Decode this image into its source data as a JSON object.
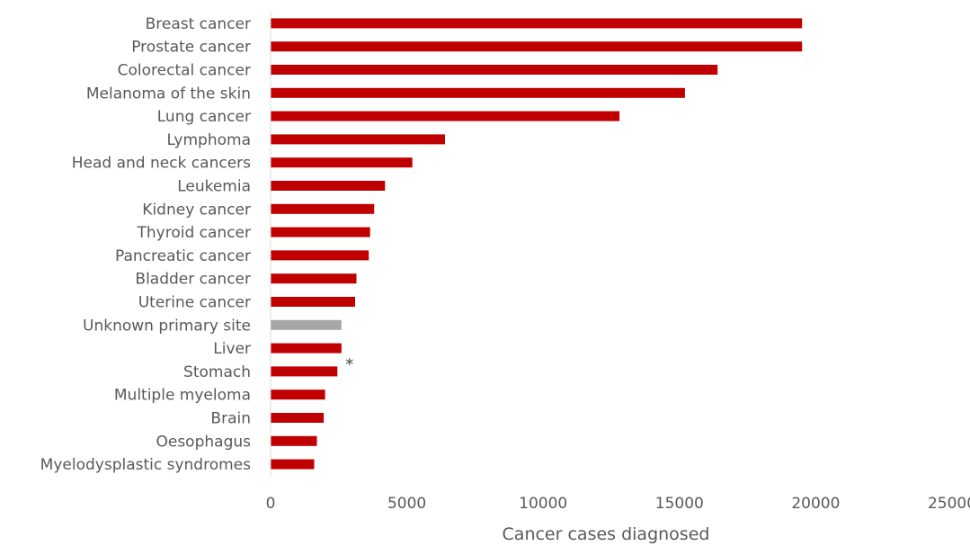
{
  "chart_data": {
    "type": "bar",
    "orientation": "horizontal",
    "title": "",
    "xlabel": "Cancer cases diagnosed",
    "ylabel": "",
    "xlim": [
      0,
      25000
    ],
    "x_ticks": [
      "0",
      "5000",
      "10000",
      "15000",
      "20000",
      "25000"
    ],
    "grid": false,
    "legend": "none",
    "categories": [
      "Breast cancer",
      "Prostate cancer",
      "Colorectal cancer",
      "Melanoma of the skin",
      "Lung cancer",
      "Lymphoma",
      "Head and neck cancers",
      "Leukemia",
      "Kidney cancer",
      "Thyroid cancer",
      "Pancreatic cancer",
      "Bladder cancer",
      "Uterine cancer",
      "Unknown primary site",
      "Liver",
      "Stomach",
      "Multiple myeloma",
      "Brain",
      "Oesophagus",
      "Myelodysplastic syndromes"
    ],
    "values": [
      19500,
      19500,
      16400,
      15200,
      12800,
      6400,
      5200,
      4200,
      3800,
      3650,
      3600,
      3150,
      3100,
      2600,
      2600,
      2450,
      2000,
      1950,
      1700,
      1600
    ],
    "bar_colors": [
      "#c00000",
      "#c00000",
      "#c00000",
      "#c00000",
      "#c00000",
      "#c00000",
      "#c00000",
      "#c00000",
      "#c00000",
      "#c00000",
      "#c00000",
      "#c00000",
      "#c00000",
      "#a6a6a6",
      "#c00000",
      "#c00000",
      "#c00000",
      "#c00000",
      "#c00000",
      "#c00000"
    ],
    "annotations": [
      {
        "text": "*",
        "category": "Stomach"
      }
    ]
  }
}
